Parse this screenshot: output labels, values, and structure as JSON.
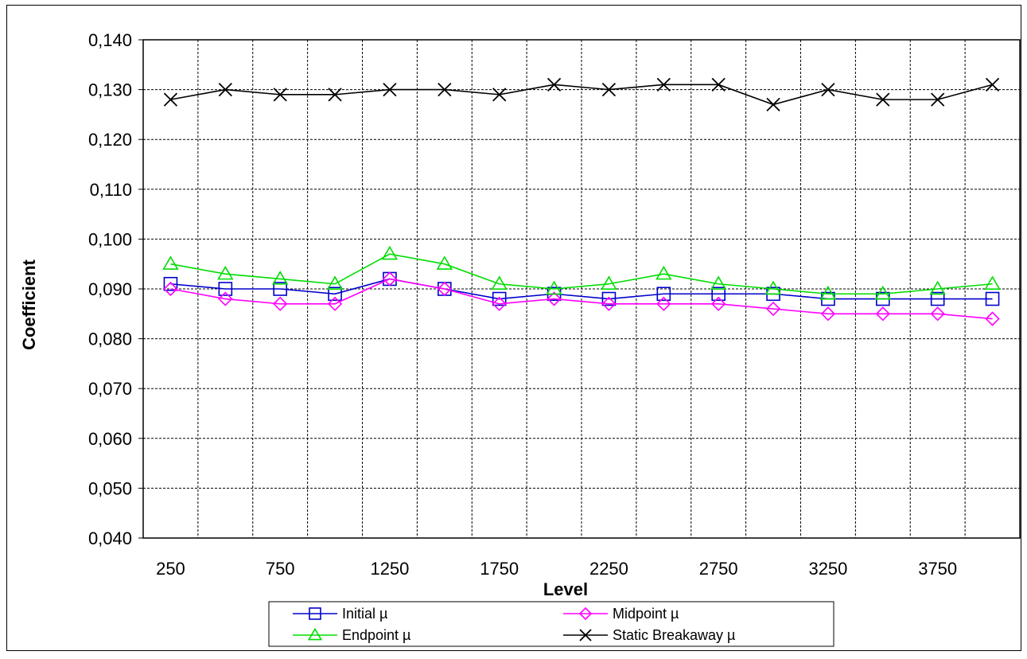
{
  "chart_data": {
    "type": "line",
    "title": "",
    "xlabel": "Level",
    "ylabel": "Coefficient",
    "x": [
      250,
      500,
      750,
      1000,
      1250,
      1500,
      1750,
      2000,
      2250,
      2500,
      2750,
      3000,
      3250,
      3500,
      3750,
      4000
    ],
    "x_tick_labels": [
      "250",
      "750",
      "1250",
      "1750",
      "2250",
      "2750",
      "3250",
      "3750"
    ],
    "y_tick_labels": [
      "0,140",
      "0,130",
      "0,120",
      "0,110",
      "0,100",
      "0,090",
      "0,080",
      "0,070",
      "0,060",
      "0,050",
      "0,040"
    ],
    "ylim": [
      0.04,
      0.14
    ],
    "grid": true,
    "legend_position": "bottom",
    "series": [
      {
        "name": "Initial µ",
        "color": "#0000cc",
        "marker": "square",
        "values": [
          0.091,
          0.09,
          0.09,
          0.089,
          0.092,
          0.09,
          0.088,
          0.089,
          0.088,
          0.089,
          0.089,
          0.089,
          0.088,
          0.088,
          0.088,
          0.088
        ]
      },
      {
        "name": "Midpoint µ",
        "color": "#ff00ff",
        "marker": "diamond",
        "values": [
          0.09,
          0.088,
          0.087,
          0.087,
          0.092,
          0.09,
          0.087,
          0.088,
          0.087,
          0.087,
          0.087,
          0.086,
          0.085,
          0.085,
          0.085,
          0.084
        ]
      },
      {
        "name": "Endpoint µ",
        "color": "#00dd00",
        "marker": "triangle",
        "values": [
          0.095,
          0.093,
          0.092,
          0.091,
          0.097,
          0.095,
          0.091,
          0.09,
          0.091,
          0.093,
          0.091,
          0.09,
          0.089,
          0.089,
          0.09,
          0.091
        ]
      },
      {
        "name": "Static Breakaway µ",
        "color": "#000000",
        "marker": "x",
        "values": [
          0.128,
          0.13,
          0.129,
          0.129,
          0.13,
          0.13,
          0.129,
          0.131,
          0.13,
          0.131,
          0.131,
          0.127,
          0.13,
          0.128,
          0.128,
          0.131
        ]
      }
    ]
  }
}
